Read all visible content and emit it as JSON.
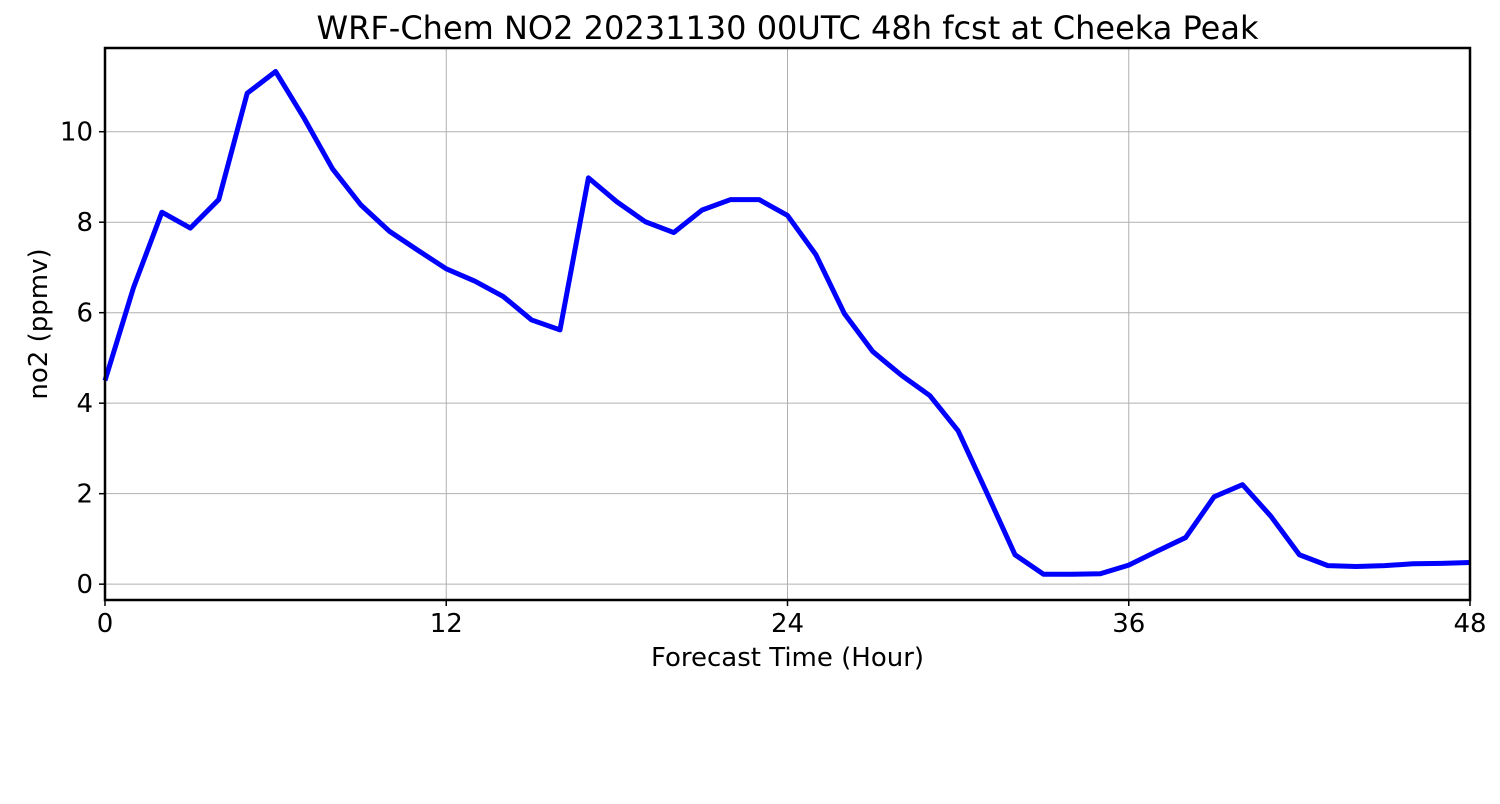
{
  "chart_data": {
    "type": "line",
    "title": "WRF-Chem NO2  20231130 00UTC 48h fcst at Cheeka Peak",
    "xlabel": "Forecast Time (Hour)",
    "ylabel": "no2  (ppmv)",
    "xlim": [
      0,
      48
    ],
    "ylim": [
      -0.35,
      11.85
    ],
    "xticks": [
      0,
      12,
      24,
      36,
      48
    ],
    "yticks": [
      0,
      2,
      4,
      6,
      8,
      10
    ],
    "grid": true,
    "legend": "none",
    "series": [
      {
        "color": "#0000ff",
        "x": [
          0,
          1,
          2,
          3,
          4,
          5,
          6,
          7,
          8,
          9,
          10,
          11,
          12,
          13,
          14,
          15,
          16,
          17,
          18,
          19,
          20,
          21,
          22,
          23,
          24,
          25,
          26,
          27,
          28,
          29,
          30,
          31,
          32,
          33,
          34,
          35,
          36,
          37,
          38,
          39,
          40,
          41,
          42,
          43,
          44,
          45,
          46,
          47,
          48
        ],
        "values": [
          4.5,
          6.55,
          8.22,
          7.87,
          8.5,
          10.85,
          11.33,
          10.3,
          9.18,
          8.38,
          7.8,
          7.38,
          6.97,
          6.7,
          6.36,
          5.84,
          5.62,
          8.98,
          8.45,
          8.01,
          7.77,
          8.27,
          8.5,
          8.5,
          8.15,
          7.28,
          5.98,
          5.14,
          4.62,
          4.17,
          3.39,
          2.03,
          0.65,
          0.22,
          0.22,
          0.23,
          0.42,
          0.73,
          1.03,
          1.93,
          2.2,
          1.5,
          0.65,
          0.41,
          0.39,
          0.41,
          0.45,
          0.46,
          0.48
        ]
      }
    ]
  }
}
